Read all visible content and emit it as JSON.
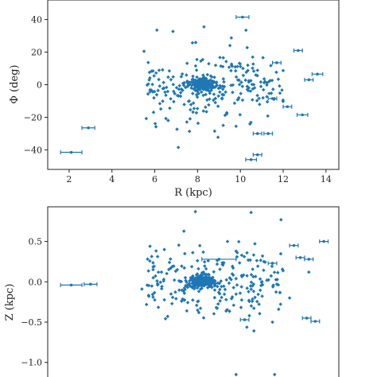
{
  "chart_data": [
    {
      "type": "scatter",
      "title": "",
      "xlabel": "R (kpc)",
      "ylabel": "Φ (deg)",
      "xlim": [
        1.0,
        14.6
      ],
      "ylim": [
        -52,
        52
      ],
      "xticks": [
        2,
        4,
        6,
        8,
        10,
        12,
        14
      ],
      "yticks": [
        -40,
        -20,
        0,
        20,
        40
      ],
      "color": "#1f77b4",
      "grid": false,
      "seed": 7,
      "cluster": {
        "x": 8.2,
        "y": 0,
        "count": 420
      },
      "points_with_error": [
        {
          "x": 2.1,
          "xerr": 0.5,
          "y": -41.5
        },
        {
          "x": 2.9,
          "xerr": 0.3,
          "y": -26.5
        },
        {
          "x": 10.1,
          "xerr": 0.3,
          "y": 41.5
        },
        {
          "x": 10.8,
          "xerr": 0.2,
          "y": -43
        },
        {
          "x": 10.5,
          "xerr": 0.25,
          "y": -46
        },
        {
          "x": 12.7,
          "xerr": 0.2,
          "y": 21
        },
        {
          "x": 13.6,
          "xerr": 0.25,
          "y": 6.5
        },
        {
          "x": 13.2,
          "xerr": 0.2,
          "y": 3
        },
        {
          "x": 12.9,
          "xerr": 0.25,
          "y": -18.5
        },
        {
          "x": 12.2,
          "xerr": 0.2,
          "y": -13.5
        },
        {
          "x": 11.3,
          "xerr": 0.2,
          "y": -30
        },
        {
          "x": 10.8,
          "xerr": 0.2,
          "y": -30
        },
        {
          "x": 11.7,
          "xerr": 0.2,
          "y": 13.5
        },
        {
          "x": 11.5,
          "xerr": 0.2,
          "y": -8.5
        }
      ],
      "extra_points": [
        {
          "x": 6.1,
          "y": 33.5
        },
        {
          "x": 7.1,
          "y": -38.5
        },
        {
          "x": 8.3,
          "y": 35.5
        },
        {
          "x": 5.5,
          "y": 20.5
        },
        {
          "x": 9.8,
          "y": -25.5
        },
        {
          "x": 8.8,
          "y": -28.5
        }
      ]
    },
    {
      "type": "scatter",
      "title": "",
      "xlabel": "",
      "ylabel": "Z (kpc)",
      "xlim": [
        1.0,
        14.6
      ],
      "ylim": [
        -1.2,
        0.93
      ],
      "xticks": [],
      "yticks": [
        -1.0,
        -0.5,
        0.0,
        0.5
      ],
      "ytick_labels": [
        "−1.0",
        "−0.5",
        "0.0",
        "0.5"
      ],
      "color": "#1f77b4",
      "grid": false,
      "seed": 11,
      "cluster": {
        "x": 8.2,
        "y": 0,
        "count": 420
      },
      "points_with_error": [
        {
          "x": 2.1,
          "xerr": 0.5,
          "y": -0.04
        },
        {
          "x": 3.0,
          "xerr": 0.3,
          "y": -0.03
        },
        {
          "x": 9.0,
          "xerr": 0.8,
          "y": 0.28
        },
        {
          "x": 13.9,
          "xerr": 0.2,
          "y": 0.5
        },
        {
          "x": 12.5,
          "xerr": 0.2,
          "y": 0.45
        },
        {
          "x": 13.5,
          "xerr": 0.2,
          "y": -0.49
        },
        {
          "x": 13.1,
          "xerr": 0.2,
          "y": -0.45
        },
        {
          "x": 10.2,
          "xerr": 0.2,
          "y": -0.47
        },
        {
          "x": 11.5,
          "xerr": 0.2,
          "y": 0.23
        },
        {
          "x": 12.8,
          "xerr": 0.2,
          "y": 0.3
        },
        {
          "x": 13.2,
          "xerr": 0.2,
          "y": 0.28
        }
      ],
      "extra_points": [
        {
          "x": 7.9,
          "y": 0.87
        },
        {
          "x": 10.5,
          "y": 0.86
        },
        {
          "x": 9.8,
          "y": -1.15
        },
        {
          "x": 11.6,
          "y": -1.15
        },
        {
          "x": 11.9,
          "y": 0.77
        },
        {
          "x": 5.4,
          "y": -0.09
        },
        {
          "x": 9.4,
          "y": 0.5
        },
        {
          "x": 11.5,
          "y": -0.5
        },
        {
          "x": 12.3,
          "y": -0.2
        },
        {
          "x": 13.2,
          "y": 0.12
        }
      ]
    }
  ]
}
